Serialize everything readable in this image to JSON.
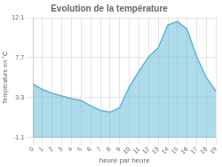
{
  "chart_data": {
    "type": "area",
    "title": "Evolution de la température",
    "xlabel": "heure par heure",
    "ylabel": "Température en °C",
    "x": [
      0,
      1,
      2,
      3,
      4,
      5,
      6,
      7,
      8,
      9,
      10,
      11,
      12,
      13,
      14,
      15,
      16,
      17,
      18,
      19
    ],
    "values": [
      4.8,
      4.2,
      3.8,
      3.5,
      3.2,
      3.0,
      2.4,
      1.9,
      1.7,
      2.2,
      4.5,
      6.2,
      7.8,
      8.8,
      11.3,
      11.7,
      10.8,
      7.8,
      5.5,
      4.0
    ],
    "color": "#5bb8d4",
    "xlim": [
      0,
      19
    ],
    "xticks": [
      0,
      1,
      2,
      3,
      4,
      5,
      6,
      7,
      8,
      9,
      10,
      11,
      12,
      13,
      14,
      15,
      16,
      17,
      18,
      19
    ],
    "ylim": [
      -1.1,
      12.1
    ],
    "yticks": [
      -1.1,
      3.3,
      7.7,
      12.1
    ],
    "grid": true
  }
}
